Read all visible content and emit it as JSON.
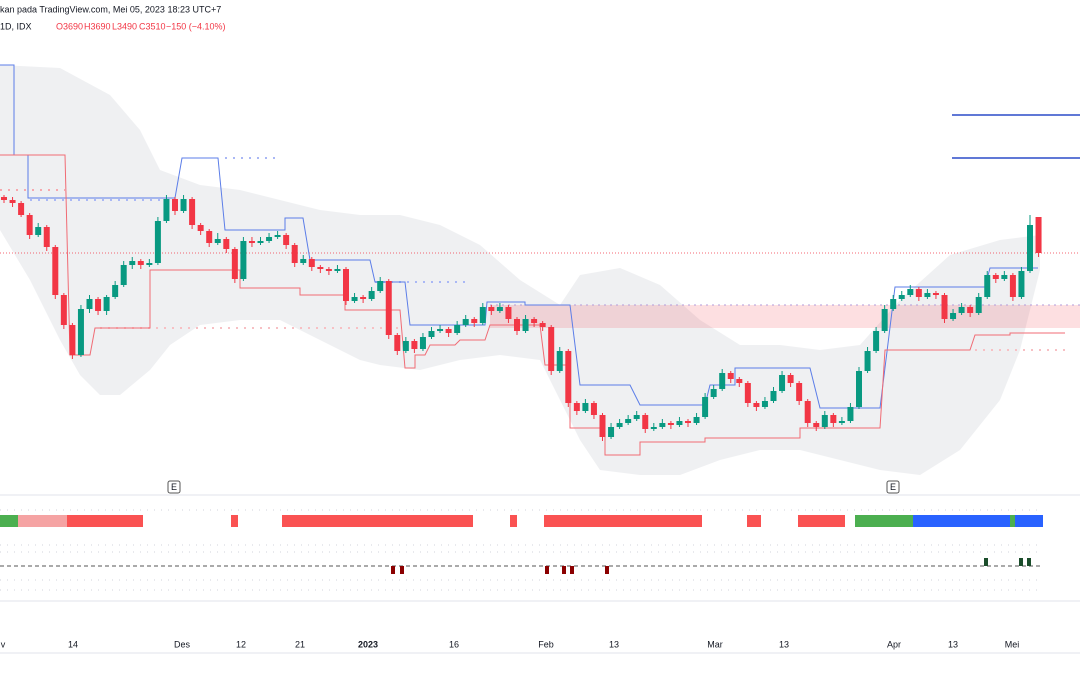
{
  "header": {
    "source": "kan pada TradingView.com, Mei 05, 2023 18:23 UTC+7",
    "symbol": "1D, IDX",
    "open": "O3690",
    "high": "H3690",
    "low": "L3490",
    "close": "C3510",
    "change": "−150 (−4.10%)"
  },
  "chart_data": {
    "type": "candlestick",
    "up_color": "#089981",
    "down_color": "#f23645",
    "x_labels": [
      "v",
      "14",
      "Des",
      "12",
      "21",
      "2023",
      "16",
      "Feb",
      "13",
      "Mar",
      "13",
      "Apr",
      "13",
      "Mei"
    ],
    "events": [
      "E",
      "E"
    ],
    "candles": [
      [
        3790,
        3800,
        3760,
        3775
      ],
      [
        3775,
        3790,
        3740,
        3760
      ],
      [
        3760,
        3770,
        3690,
        3700
      ],
      [
        3700,
        3710,
        3580,
        3600
      ],
      [
        3600,
        3660,
        3590,
        3640
      ],
      [
        3640,
        3650,
        3520,
        3540
      ],
      [
        3540,
        3550,
        3280,
        3300
      ],
      [
        3300,
        3310,
        3130,
        3150
      ],
      [
        3150,
        3160,
        2980,
        3000
      ],
      [
        3000,
        3250,
        2990,
        3230
      ],
      [
        3230,
        3300,
        3210,
        3280
      ],
      [
        3280,
        3290,
        3200,
        3220
      ],
      [
        3220,
        3300,
        3200,
        3290
      ],
      [
        3290,
        3370,
        3280,
        3350
      ],
      [
        3350,
        3470,
        3340,
        3450
      ],
      [
        3450,
        3490,
        3430,
        3470
      ],
      [
        3470,
        3480,
        3430,
        3450
      ],
      [
        3450,
        3480,
        3440,
        3460
      ],
      [
        3460,
        3690,
        3450,
        3670
      ],
      [
        3670,
        3800,
        3660,
        3780
      ],
      [
        3780,
        3790,
        3700,
        3720
      ],
      [
        3720,
        3800,
        3710,
        3780
      ],
      [
        3780,
        3790,
        3630,
        3650
      ],
      [
        3650,
        3660,
        3600,
        3620
      ],
      [
        3620,
        3630,
        3540,
        3560
      ],
      [
        3560,
        3610,
        3550,
        3580
      ],
      [
        3580,
        3590,
        3510,
        3530
      ],
      [
        3530,
        3540,
        3360,
        3380
      ],
      [
        3380,
        3590,
        3370,
        3570
      ],
      [
        3570,
        3590,
        3540,
        3560
      ],
      [
        3560,
        3590,
        3550,
        3570
      ],
      [
        3570,
        3610,
        3560,
        3590
      ],
      [
        3590,
        3620,
        3580,
        3600
      ],
      [
        3600,
        3610,
        3530,
        3550
      ],
      [
        3550,
        3560,
        3440,
        3460
      ],
      [
        3460,
        3500,
        3450,
        3480
      ],
      [
        3480,
        3490,
        3420,
        3440
      ],
      [
        3440,
        3450,
        3410,
        3430
      ],
      [
        3430,
        3440,
        3400,
        3420
      ],
      [
        3420,
        3450,
        3410,
        3430
      ],
      [
        3430,
        3440,
        3250,
        3270
      ],
      [
        3270,
        3310,
        3260,
        3290
      ],
      [
        3290,
        3300,
        3260,
        3280
      ],
      [
        3280,
        3340,
        3270,
        3320
      ],
      [
        3320,
        3390,
        3310,
        3370
      ],
      [
        3370,
        3380,
        3080,
        3100
      ],
      [
        3100,
        3110,
        3000,
        3020
      ],
      [
        3020,
        3090,
        3010,
        3070
      ],
      [
        3070,
        3080,
        3010,
        3030
      ],
      [
        3030,
        3110,
        3020,
        3090
      ],
      [
        3090,
        3140,
        3080,
        3120
      ],
      [
        3120,
        3150,
        3110,
        3130
      ],
      [
        3130,
        3140,
        3090,
        3110
      ],
      [
        3110,
        3170,
        3100,
        3150
      ],
      [
        3150,
        3200,
        3140,
        3180
      ],
      [
        3180,
        3190,
        3140,
        3160
      ],
      [
        3160,
        3260,
        3150,
        3240
      ],
      [
        3240,
        3250,
        3200,
        3220
      ],
      [
        3220,
        3260,
        3210,
        3240
      ],
      [
        3240,
        3250,
        3160,
        3180
      ],
      [
        3180,
        3190,
        3100,
        3120
      ],
      [
        3120,
        3200,
        3110,
        3180
      ],
      [
        3180,
        3190,
        3140,
        3160
      ],
      [
        3160,
        3170,
        3120,
        3140
      ],
      [
        3140,
        3150,
        2900,
        2920
      ],
      [
        2920,
        3040,
        2910,
        3020
      ],
      [
        3020,
        3030,
        2740,
        2760
      ],
      [
        2760,
        2770,
        2700,
        2720
      ],
      [
        2720,
        2780,
        2710,
        2760
      ],
      [
        2760,
        2770,
        2680,
        2700
      ],
      [
        2700,
        2710,
        2570,
        2590
      ],
      [
        2590,
        2660,
        2580,
        2640
      ],
      [
        2640,
        2680,
        2630,
        2660
      ],
      [
        2660,
        2700,
        2650,
        2680
      ],
      [
        2680,
        2720,
        2670,
        2700
      ],
      [
        2700,
        2710,
        2610,
        2630
      ],
      [
        2630,
        2660,
        2620,
        2640
      ],
      [
        2640,
        2680,
        2630,
        2660
      ],
      [
        2660,
        2670,
        2630,
        2650
      ],
      [
        2650,
        2690,
        2640,
        2670
      ],
      [
        2670,
        2680,
        2640,
        2660
      ],
      [
        2660,
        2710,
        2650,
        2690
      ],
      [
        2690,
        2810,
        2680,
        2790
      ],
      [
        2790,
        2850,
        2780,
        2830
      ],
      [
        2830,
        2930,
        2820,
        2910
      ],
      [
        2910,
        2920,
        2860,
        2880
      ],
      [
        2880,
        2890,
        2840,
        2860
      ],
      [
        2860,
        2870,
        2740,
        2760
      ],
      [
        2760,
        2770,
        2720,
        2740
      ],
      [
        2740,
        2790,
        2730,
        2770
      ],
      [
        2770,
        2840,
        2760,
        2820
      ],
      [
        2820,
        2920,
        2810,
        2900
      ],
      [
        2900,
        2910,
        2840,
        2860
      ],
      [
        2860,
        2870,
        2750,
        2770
      ],
      [
        2770,
        2780,
        2640,
        2660
      ],
      [
        2660,
        2670,
        2620,
        2640
      ],
      [
        2640,
        2720,
        2630,
        2700
      ],
      [
        2700,
        2710,
        2640,
        2660
      ],
      [
        2660,
        2690,
        2650,
        2670
      ],
      [
        2670,
        2760,
        2660,
        2740
      ],
      [
        2740,
        2940,
        2730,
        2920
      ],
      [
        2920,
        3040,
        2910,
        3020
      ],
      [
        3020,
        3140,
        3010,
        3120
      ],
      [
        3120,
        3250,
        3110,
        3230
      ],
      [
        3230,
        3300,
        3220,
        3280
      ],
      [
        3280,
        3320,
        3270,
        3300
      ],
      [
        3300,
        3350,
        3290,
        3330
      ],
      [
        3330,
        3340,
        3270,
        3290
      ],
      [
        3290,
        3330,
        3280,
        3310
      ],
      [
        3310,
        3320,
        3280,
        3300
      ],
      [
        3300,
        3310,
        3160,
        3180
      ],
      [
        3180,
        3230,
        3170,
        3210
      ],
      [
        3210,
        3260,
        3200,
        3240
      ],
      [
        3240,
        3250,
        3190,
        3210
      ],
      [
        3210,
        3310,
        3200,
        3290
      ],
      [
        3290,
        3420,
        3280,
        3400
      ],
      [
        3400,
        3410,
        3360,
        3380
      ],
      [
        3380,
        3420,
        3370,
        3400
      ],
      [
        3400,
        3410,
        3270,
        3290
      ],
      [
        3290,
        3440,
        3280,
        3420
      ],
      [
        3420,
        3700,
        3410,
        3650
      ],
      [
        3690,
        3690,
        3490,
        3510
      ]
    ]
  }
}
